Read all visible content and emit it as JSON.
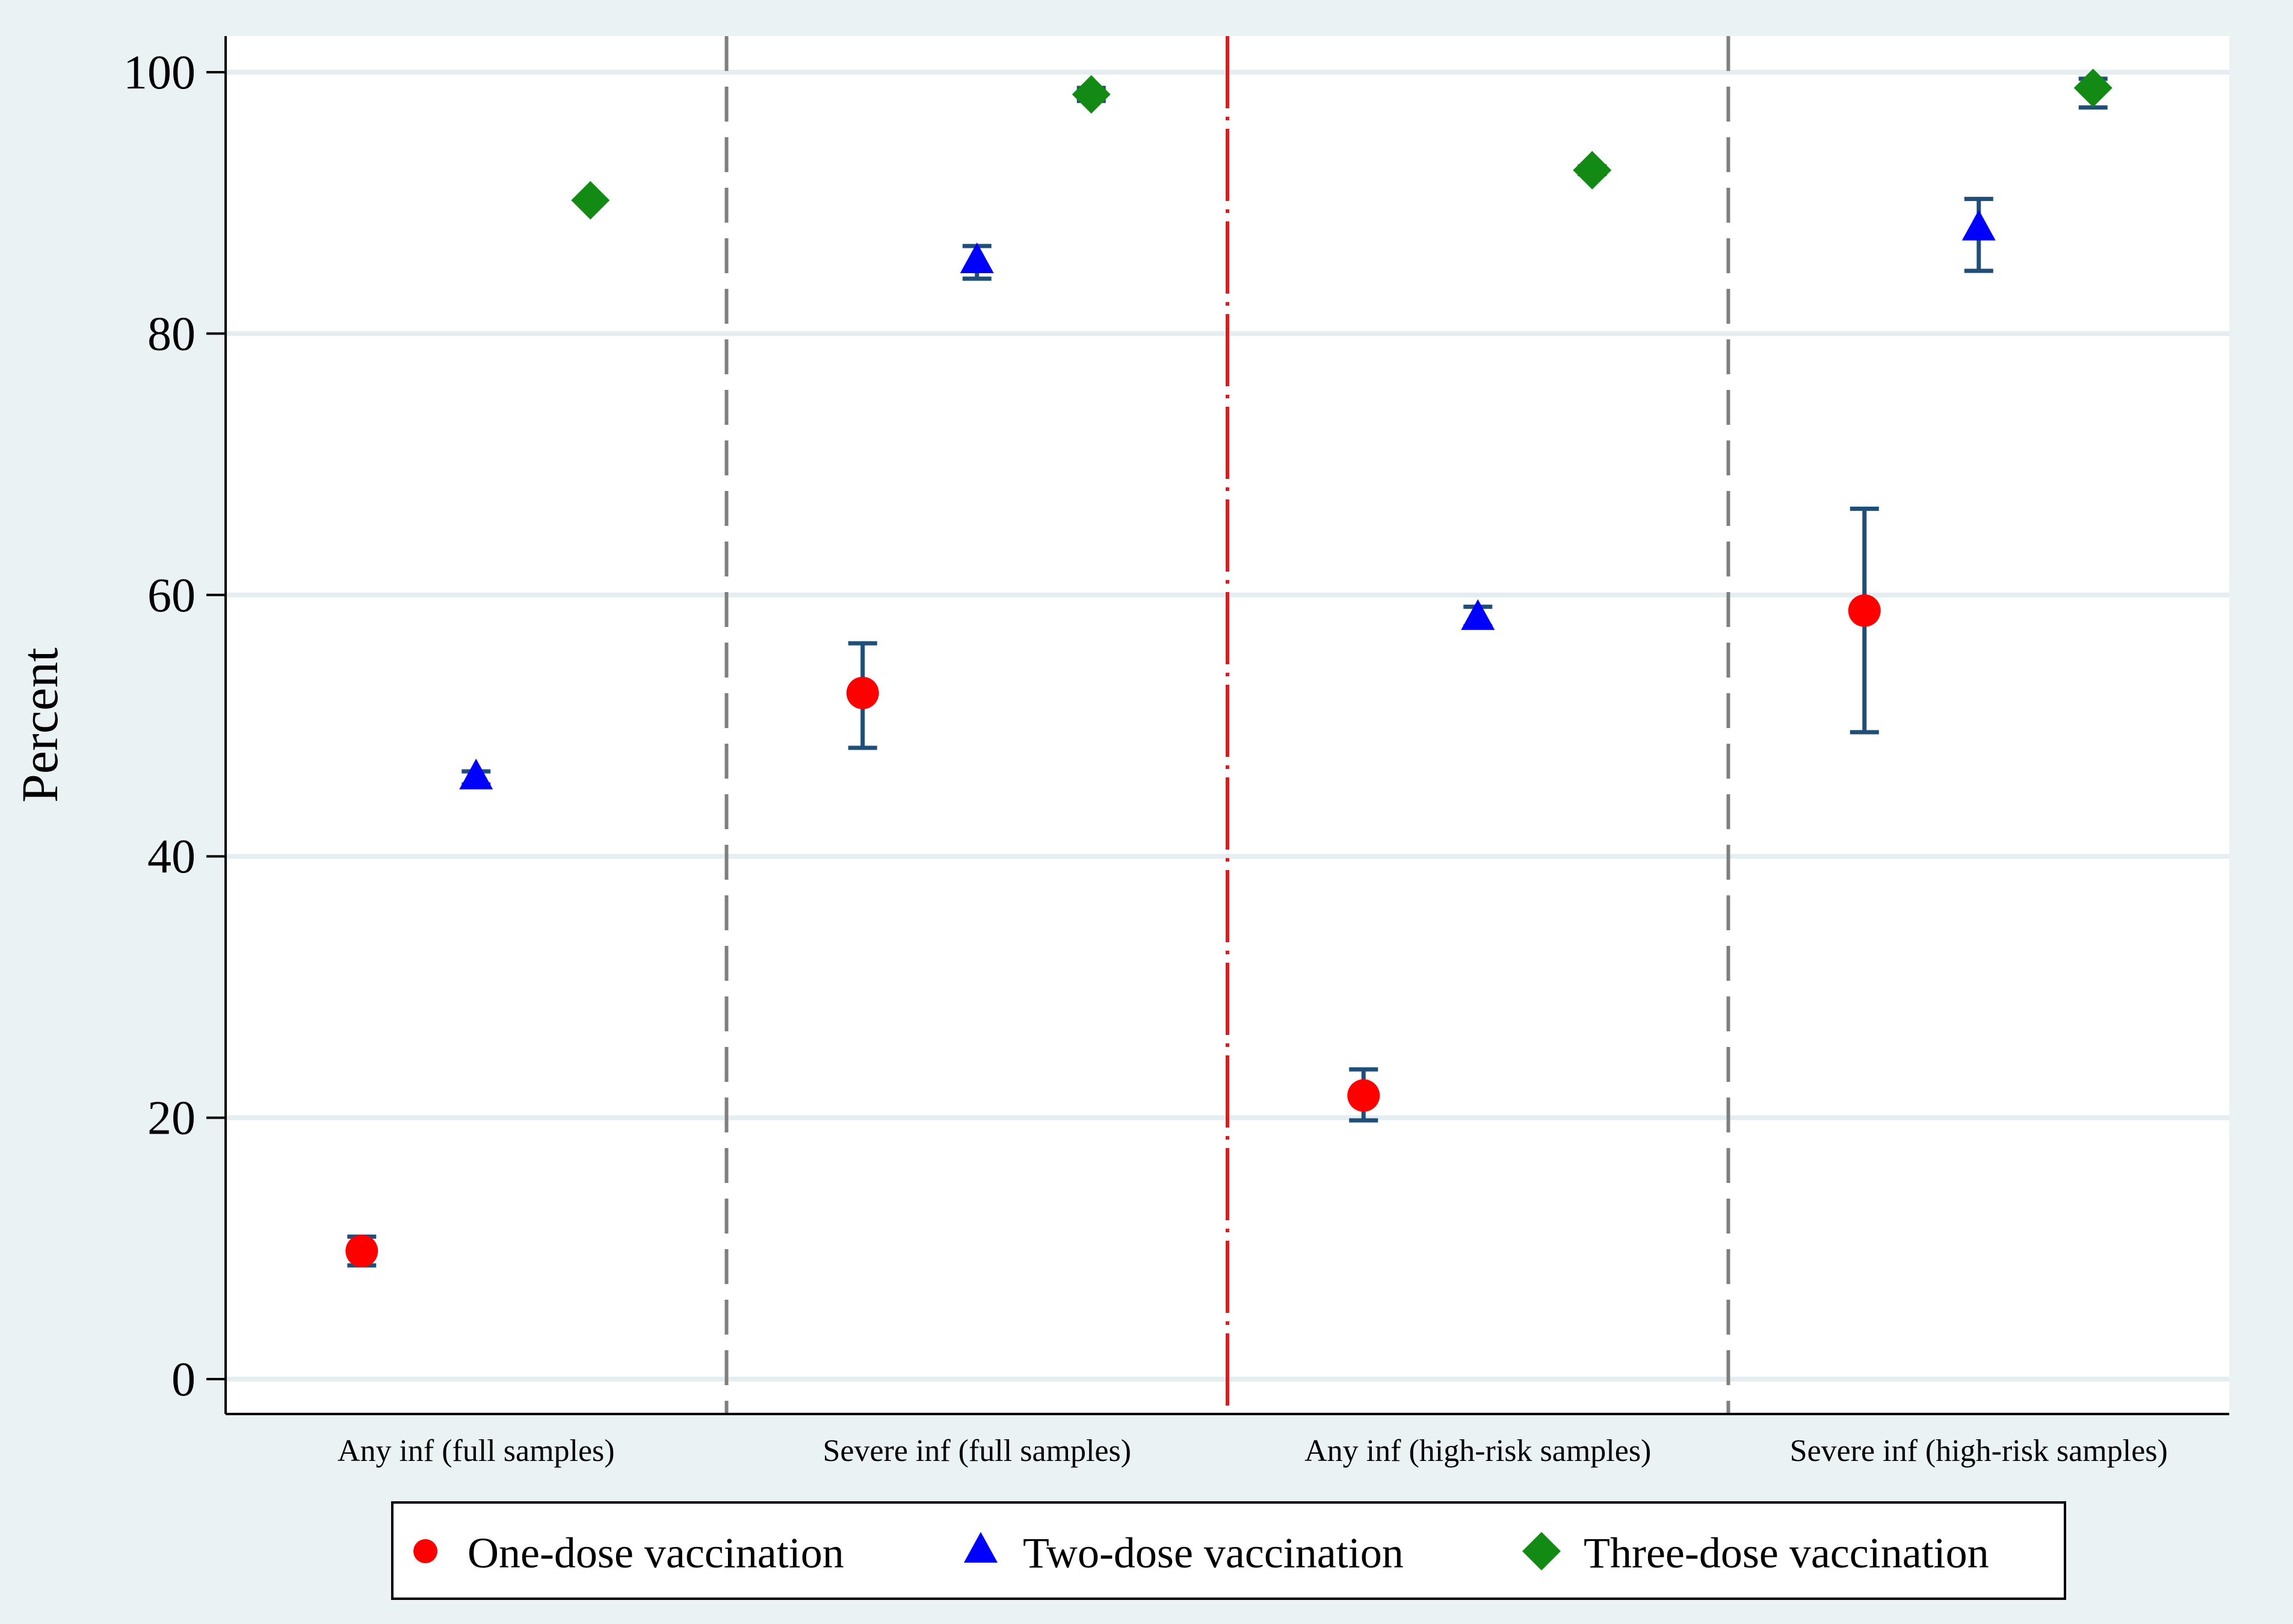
{
  "chart_data": {
    "type": "scatter",
    "title": "",
    "xlabel": "",
    "ylabel": "Percent",
    "ylim": [
      0,
      100
    ],
    "yticks": [
      "0",
      "20",
      "40",
      "60",
      "80",
      "100"
    ],
    "grid": true,
    "legend_position": "bottom",
    "categories": [
      "Any inf (full samples)",
      "Severe inf (full samples)",
      "Any inf (high-risk samples)",
      "Severe inf (high-risk samples)"
    ],
    "series": [
      {
        "name": "One-dose vaccination",
        "marker": "circle",
        "color": "#ff0000",
        "values": [
          9.8,
          52.5,
          21.7,
          58.8
        ],
        "ci_low": [
          8.7,
          48.3,
          19.8,
          49.5
        ],
        "ci_high": [
          10.9,
          56.3,
          23.7,
          66.6
        ]
      },
      {
        "name": "Two-dose vaccination",
        "marker": "triangle",
        "color": "#0000ff",
        "values": [
          46.0,
          85.5,
          58.2,
          88.0
        ],
        "ci_low": [
          45.5,
          84.2,
          57.6,
          84.8
        ],
        "ci_high": [
          46.5,
          86.7,
          59.1,
          90.3
        ]
      },
      {
        "name": "Three-dose vaccination",
        "marker": "diamond",
        "color": "#138a13",
        "values": [
          90.2,
          98.3,
          92.5,
          98.8
        ],
        "ci_low": [
          90.0,
          97.8,
          92.2,
          97.3
        ],
        "ci_high": [
          90.4,
          98.8,
          92.8,
          99.5
        ]
      }
    ],
    "colors": {
      "ci": "#1f4e79",
      "grid": "#ffffff",
      "plot_bg": "#ffffff",
      "outer_bg": "#eaf2f3",
      "separator": "#7f7f7f",
      "center_separator": "#e31a1c"
    }
  }
}
